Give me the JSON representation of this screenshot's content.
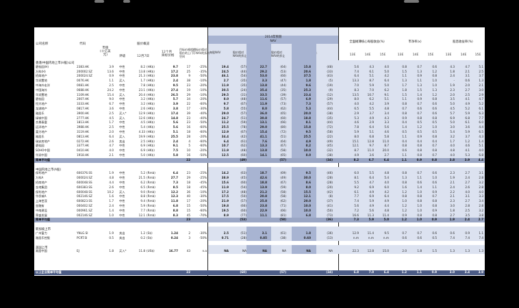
{
  "colors": {
    "band_dark": "#5b6f9e",
    "band_mid": "#a8b4d2",
    "band_light": "#dce2f0",
    "avg_bar": "#9aa6c4",
    "avg_bar_dark": "#4c5c86",
    "text": "#222222"
  },
  "header": {
    "company_label": "公司名称",
    "code_label": "代码",
    "mcap_label": "市值\n(十亿美\n元)",
    "rating_label": "评级",
    "price_label": "股价概览",
    "date_label": "12月7日",
    "target_label": "12个月\n目标价格",
    "nav_header": "2014年预测\nNAV",
    "nav_col1": "每股NAV",
    "nav_col2": "股价相对\nNAV的折让",
    "nav_col3": "全面摊薄NAV",
    "nav_col4": "股价相对\nNAV的折让",
    "nav_col5": "目标股价溢价/折让",
    "eps_header": "全面摊薄核心每股收益(%)",
    "pe_header": "市净率(x)",
    "div_header": "股息收益率(%)",
    "years": [
      "13E",
      "14E",
      "15E",
      "13E",
      "14E",
      "15E",
      "13E",
      "14E",
      "15E"
    ],
    "upside_label": "目标价格相对\n股价的上/下\n空间",
    "target_nav_label": "目标价相对\n于NAV的折价"
  },
  "sections": [
    {
      "title": "香港/中国内地上市(H股)公司",
      "rows": [
        [
          "碧桂园(H)",
          "2383.HK",
          "3.9",
          "中性",
          "8.2",
          "(HK$)",
          "9.7",
          "17",
          "-25%",
          "19.4",
          "(57)",
          "22.7",
          "(64)",
          "15.8",
          "(48)",
          "5.6",
          "4.3",
          "4.0",
          "0.8",
          "0.7",
          "0.6",
          "4.3",
          "4.7",
          "5.1"
        ],
        [
          "万科(H)",
          "200002.SZ",
          "13.6",
          "中性",
          "13.8",
          "(HK$)",
          "17.2",
          "25",
          "-35%",
          "24.5",
          "(44)",
          "29.2",
          "(53)",
          "20.6",
          "(33)",
          "7.4",
          "6.1",
          "5.0",
          "1.5",
          "1.3",
          "1.2",
          "1.8",
          "2.1",
          "2.5"
        ],
        [
          "招商地产",
          "200024.SZ",
          "0.9",
          "中性",
          "21.3",
          "(HK$)",
          "23.8",
          "9",
          "-50%",
          "46.1",
          "(54)",
          "53.0",
          "(60)",
          "37.5",
          "(43)",
          "6.4",
          "5.1",
          "4.2",
          "1.1",
          "0.9",
          "0.8",
          "2.4",
          "3.1",
          "3.7"
        ],
        [
          "华润置地",
          "0076.HK",
          "1.1",
          "买入",
          "1.7",
          "(HK$)",
          "2.4",
          "38",
          "-10%",
          "2.7",
          "(35)",
          "3.3",
          "(47)",
          "1.8",
          "(5)",
          "13.3",
          "8.7",
          "6.4",
          "1.3",
          "1.1",
          "1.0",
          "-",
          "0.6",
          "1.3"
        ],
        [
          "中海外宏洋",
          "0081.HK",
          "2.5",
          "中性",
          "7.8",
          "(HK$)",
          "9.5",
          "23",
          "-20%",
          "11.9",
          "(35)",
          "13.8",
          "(44)",
          "9.6",
          "(19)",
          "7.0",
          "5.9",
          "5.0",
          "1.7",
          "1.3",
          "1.0",
          "1.9",
          "2.0",
          "2.1"
        ],
        [
          "中国海外",
          "0688.HK",
          "24.2",
          "中性",
          "23.1",
          "(HK$)",
          "27.4",
          "19",
          "-10%",
          "30.5",
          "(24)",
          "35.4",
          "(35)",
          "25.3",
          "(9)",
          "8.3",
          "7.0",
          "6.2",
          "1.8",
          "1.5",
          "1.3",
          "2.3",
          "2.7",
          "3.0"
        ],
        [
          "华润置地",
          "1109.HK",
          "15.4",
          "买入",
          "20.4",
          "(HK$)",
          "26.5",
          "29",
          "-10%",
          "29.5",
          "(31)",
          "33.5",
          "(39)",
          "23.4",
          "(12)",
          "13.5",
          "10.7",
          "9.1",
          "1.5",
          "1.4",
          "1.2",
          "2.0",
          "2.5",
          "2.9"
        ],
        [
          "碧桂园",
          "2007.HK",
          "9.0",
          "中性",
          "3.2",
          "(HK$)",
          "5.7",
          "34",
          "-20%",
          "8.0",
          "(48)",
          "11.6",
          "(57)",
          "6.9",
          "(29)",
          "8.0",
          "6.2",
          "5.1",
          "1.1",
          "0.9",
          "0.8",
          "3.5",
          "4.1",
          "4.7"
        ],
        [
          "恒大地产",
          "3333.HK",
          "6.7",
          "中性",
          "3.2",
          "(HK$)",
          "3.9",
          "22",
          "-60%",
          "9.7",
          "(67)",
          "11.9",
          "(73)",
          "7.3",
          "(57)",
          "4.0",
          "4.2",
          "3.9",
          "0.8",
          "0.7",
          "0.6",
          "5.0",
          "4.9",
          "5.2"
        ],
        [
          "龙湖地产",
          "0817.HK",
          "3.6",
          "中性",
          "2.6",
          "(HK$)",
          "3.8",
          "17",
          "-30%",
          "5.8",
          "(55)",
          "8.0",
          "(62)",
          "5.3",
          "(44)",
          "6.5",
          "5.5",
          "4.8",
          "0.7",
          "0.6",
          "0.6",
          "4.5",
          "5.2",
          "6.1"
        ],
        [
          "雅居乐",
          "3900.HK",
          "2.5",
          "买入*",
          "12.9",
          "(HK$)",
          "17.4",
          "39",
          "-40%",
          "29.0",
          "(57)",
          "36.0",
          "(65)",
          "20.0",
          "(38)",
          "2.9",
          "3.7",
          "3.4",
          "0.8",
          "0.7",
          "0.6",
          "5.7",
          "5.9",
          "6.3"
        ],
        [
          "绿城中国",
          "2777.HK",
          "4.5",
          "买入",
          "12.6",
          "(HK$)",
          "14.8",
          "23",
          "-40%",
          "24.7",
          "(51)",
          "30.8",
          "(60)",
          "18.8",
          "(35)",
          "5.3",
          "4.9",
          "4.3",
          "0.9",
          "0.8",
          "0.8",
          "6.9",
          "6.8",
          "7.7"
        ],
        [
          "合景泰富",
          "1813.HK",
          "1.7",
          "中性",
          "4.5",
          "(HK$)",
          "5.6",
          "23",
          "-50%",
          "11.2",
          "(59)",
          "13.1",
          "(66)",
          "8.1",
          "(44)",
          "4.6",
          "2.9",
          "3.3",
          "0.4",
          "0.5",
          "0.5",
          "5.0",
          "6.1",
          "6.0"
        ],
        [
          "远洋地产",
          "3988.HK",
          "2.5",
          "中性",
          "5.4",
          "(HK$)",
          "5.6",
          "16",
          "-60%",
          "25.5",
          "(78)",
          "29.0",
          "(80)",
          "15.8",
          "(72)",
          "7.8",
          "6.4",
          "5.6",
          "1.4",
          "1.2",
          "1.0",
          "3.0",
          "3.6",
          "4.4"
        ],
        [
          "富力地产",
          "3119.HK",
          "2.0",
          "中性",
          "4.33",
          "(HK$)",
          "5.1",
          "18",
          "-60%",
          "12.9",
          "(67)",
          "15.4",
          "(72)",
          "9.5",
          "(58)",
          "5.9",
          "5.1",
          "4.6",
          "0.5",
          "0.5",
          "0.5",
          "5.4",
          "5.9",
          "6.5"
        ],
        [
          "雅居乐",
          "0813.HK",
          "6.4",
          "买入",
          "19.9",
          "(HK$)",
          "25.5",
          "28",
          "-20%",
          "34.4",
          "(42)",
          "41.1",
          "(51)",
          "25.5",
          "(22)",
          "8.0",
          "6.8",
          "5.8",
          "1.1",
          "0.9",
          "0.8",
          "3.2",
          "3.7",
          "4.3"
        ],
        [
          "瑞安房地产",
          "0272.HK",
          "2.6",
          "卖出",
          "2.5",
          "(HK$)",
          "2.4",
          "4",
          "-60%",
          "6.4",
          "(61)",
          "7.6",
          "(64)",
          "4.9",
          "(49)",
          "15.1",
          "12.8",
          "11.0",
          "0.4",
          "0.4",
          "0.4",
          "1.7",
          "1.2",
          "1.4"
        ],
        [
          "碧桂园",
          "3377.HK",
          "4.7",
          "中性",
          "6.9",
          "(HK$)",
          "9.1",
          "5",
          "-60%",
          "10.7",
          "(62)",
          "13.3",
          "(67)",
          "8.2",
          "(45)",
          "12.1",
          "9.7",
          "8.7",
          "0.8",
          "0.8",
          "0.7",
          "4.0",
          "4.6",
          "5.1"
        ],
        [
          "SOHO中国",
          "0410.HK",
          "4.0",
          "中性",
          "6.9",
          "(HK$)",
          "7.5",
          "10",
          "-20%",
          "11.9",
          "(48)",
          "13.8",
          "(58)",
          "10.0",
          "(32)",
          "8.7",
          "11.0",
          "20.0",
          "0.6",
          "0.8",
          "0.8",
          "4.8",
          "4.1",
          "4.0"
        ],
        [
          "华润中国",
          "1918.HK",
          "2.1",
          "中性",
          "5.0",
          "(HK$)",
          "5.8",
          "16",
          "-50%",
          "12.5",
          "(60)",
          "14.1",
          "(65)",
          "8.0",
          "(38)",
          "4.9",
          "3.6",
          "2.7",
          "1.1",
          "0.8",
          "0.7",
          "4.0",
          "5.3",
          "6.8"
        ]
      ],
      "avg": {
        "label": "简单平均值",
        "upside": "22",
        "nav_disc": "(49)",
        "nav_disc2": "(57)",
        "tgt_disc": "(34)",
        "vals": [
          "8.2",
          "6.7",
          "6.4",
          "1.1",
          "0.9",
          "0.8",
          "3.8",
          "3.9",
          "4.4"
        ]
      }
    },
    {
      "title": "中国内地上市(A股)",
      "rows": [
        [
          "保利地产",
          "600376.SS",
          "1.9",
          "中性",
          "5.2",
          "(Rmb)",
          "6.4",
          "23",
          "-25%",
          "14.2",
          "(63)",
          "18.7",
          "(69)",
          "9.5",
          "(46)",
          "6.0",
          "5.5",
          "4.8",
          "0.8",
          "0.7",
          "0.6",
          "2.3",
          "2.7",
          "3.1"
        ],
        [
          "万科A",
          "000024.SZ",
          "4.8",
          "中性",
          "21.5",
          "(Rmb)",
          "27.7",
          "29",
          "-25%",
          "38.9",
          "(45)",
          "42.6",
          "(49)",
          "30.0",
          "(28)",
          "8.1",
          "6.4",
          "5.4",
          "1.3",
          "1.1",
          "1.0",
          "1.9",
          "2.4",
          "2.8"
        ],
        [
          "招商地产",
          "600048.SS",
          "4.4",
          "中性",
          "6.2",
          "(Rmb)",
          "7.3",
          "18",
          "-45%",
          "15.6",
          "(60)",
          "18.8",
          "(67)",
          "8.6",
          "(28)",
          "5.5",
          "4.7",
          "4.0",
          "0.8",
          "0.6",
          "0.6",
          "2.1",
          "2.7",
          "3.2"
        ],
        [
          "金地集团",
          "600383.SS",
          "2.6",
          "中性",
          "6.5",
          "(Rmb)",
          "8.5",
          "18",
          "-45%",
          "11.9",
          "(54)",
          "13.9",
          "(59)",
          "8.0",
          "(20)",
          "9.2",
          "6.9",
          "6.0",
          "1.6",
          "1.4",
          "1.1",
          "2.4",
          "2.6",
          "2.8"
        ],
        [
          "保利地产",
          "600048.SS",
          "10.2",
          "买入",
          "9.0",
          "(Rmb)",
          "12.2",
          "36",
          "-10%",
          "17.2",
          "(48)",
          "21.2",
          "(58)",
          "15.5",
          "(42)",
          "6.1",
          "4.9",
          "4.2",
          "1.2",
          "1.0",
          "0.9",
          "2.2",
          "4.0",
          "4.0"
        ],
        [
          "华侨城A",
          "002146.SZ",
          "1.6",
          "中性",
          "8.8",
          "(Rmb)",
          "12.3",
          "40",
          "-30%",
          "17.5",
          "(50)",
          "20.8",
          "(58)",
          "12.1",
          "(8)",
          "7.7",
          "6.9",
          "6.4",
          "0.8",
          "0.8",
          "0.7",
          "2.1",
          "3.1",
          "3.3"
        ],
        [
          "上海世茂",
          "600823.SS",
          "1.7",
          "中性",
          "9.4",
          "(Rmb)",
          "11.8",
          "17",
          "-20%",
          "21.9",
          "(57)",
          "25.8",
          "(62)",
          "20.0",
          "(37)",
          "7.4",
          "5.9",
          "4.9",
          "1.0",
          "0.8",
          "0.8",
          "2.3",
          "2.7",
          "3.4"
        ],
        [
          "金融街",
          "000402.SZ",
          "2.4",
          "中性",
          "5.9",
          "(Rmb)",
          "6.8",
          "15",
          "-50%",
          "19.8",
          "(66)",
          "23.8",
          "(71)",
          "10.0",
          "(41)",
          "5.6",
          "4.9",
          "4.4",
          "1.2",
          "1.0",
          "0.8",
          "3.0",
          "2.8",
          "2.8"
        ],
        [
          "中南建设",
          "000961.SZ",
          "1.4",
          "中性",
          "7.7",
          "(Rmb)",
          "8.8",
          "15",
          "-60%",
          "19.5",
          "(60)",
          "22.9",
          "(66)",
          "10.0",
          "(50)",
          "7.2",
          "5.6",
          "4.8",
          "1.2",
          "1.0",
          "0.9",
          "1.8",
          "2.5",
          "3.2"
        ],
        [
          "荣盛发展",
          "002146.SZ",
          "1.0",
          "中性",
          "12.1",
          "(Rmb)",
          "8.3",
          "45",
          "-70%",
          "8.9",
          "(77)",
          "11.1",
          "(81)",
          "6.8",
          "(73)",
          "16.6",
          "11.3",
          "11.4",
          "0.9",
          "0.8",
          "0.8",
          "2.7",
          "3.5",
          "3.8"
        ]
      ],
      "avg": {
        "label": "简单平均值",
        "upside": "23",
        "nav_disc": "(53)",
        "nav_disc2": "(58)",
        "tgt_disc": "(36)",
        "vals": [
          "7.3",
          "5.9",
          "5.0",
          "1.2",
          "1.0",
          "0.9",
          "1.9",
          "2.4",
          "2.7"
        ]
      }
    },
    {
      "title": "新加坡上市",
      "rows": [
        [
          "广州富力",
          "YNLG.SI",
          "1.9",
          "卖出",
          "1.2",
          "(S$)",
          "1.24",
          "2",
          "-30%",
          "2.5",
          "(51)",
          "3.1",
          "(61)",
          "1.8",
          "(36)",
          "12.9",
          "11.4",
          "9.5",
          "0.7",
          "0.7",
          "0.6",
          "0.6",
          "0.9",
          "1.1"
        ],
        [
          "雅居乐控股",
          "PCRT.SI",
          "0.5",
          "卖出",
          "0.2",
          "(S$)",
          "0.24",
          "3",
          "-50%",
          "0.71",
          "(28)",
          "0.85",
          "(38)",
          "0.60",
          "(13)",
          "n.m",
          "n.m",
          "n.m",
          "0.6",
          "0.6",
          "0.5",
          "7.4",
          "7.4",
          "7.4"
        ]
      ]
    },
    {
      "title": "美国上市",
      "rows": [
        [
          "易居中国",
          "EJ",
          "1.8",
          "买入*",
          "11.8",
          "(US$)",
          "16.77",
          "43",
          "n.a",
          "NA",
          "NA",
          "NA",
          "NA",
          "NA",
          "NA",
          "22.3",
          "12.8",
          "15.0",
          "2.0",
          "1.8",
          "1.5",
          "1.3",
          "1.3",
          "1.3"
        ]
      ]
    }
  ],
  "footer": {
    "label": "以上企业简单平均值",
    "upside": "22",
    "nav_disc": "(60)",
    "nav_disc2": "(57)",
    "tgt_disc": "(34)",
    "vals": [
      "6.8",
      "7.0",
      "6.4",
      "1.2",
      "1.1",
      "0.9",
      "3.0",
      "3.4",
      "3.9"
    ]
  }
}
